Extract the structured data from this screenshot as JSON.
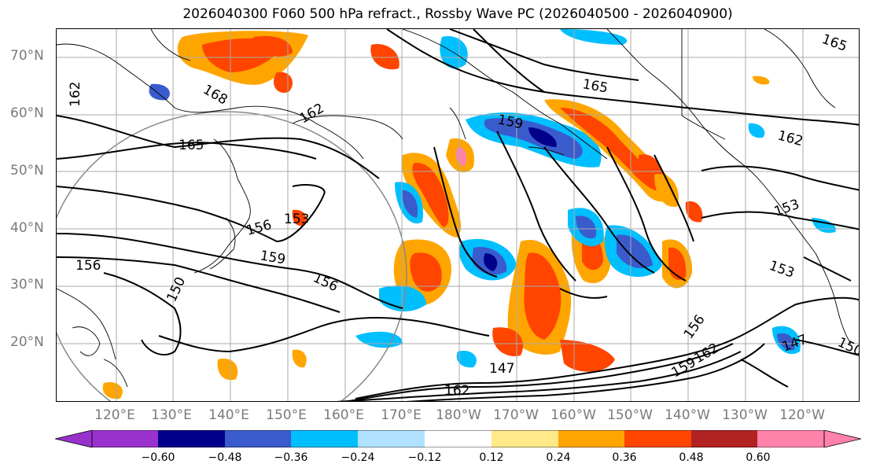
{
  "title": "2026040300 F060 500 hPa refract., Rossby Wave PC (2026040500 - 2026040900)",
  "lat_labels": [
    "70°N",
    "60°N",
    "50°N",
    "40°N",
    "30°N",
    "20°N"
  ],
  "lon_labels": [
    "120°E",
    "130°E",
    "140°E",
    "150°E",
    "160°E",
    "170°E",
    "180°W",
    "170°W",
    "160°W",
    "150°W",
    "140°W",
    "130°W",
    "120°W"
  ],
  "contour_labels": [
    "168",
    "165",
    "165",
    "162",
    "162",
    "162",
    "159",
    "159",
    "156",
    "156",
    "156",
    "153",
    "153",
    "153",
    "150",
    "150",
    "147",
    "147",
    "162",
    "159",
    "162",
    "156",
    "165"
  ],
  "colorbar": {
    "ticks": [
      "−0.60",
      "−0.48",
      "−0.36",
      "−0.24",
      "−0.12",
      "0.12",
      "0.24",
      "0.36",
      "0.48",
      "0.60"
    ],
    "colors": [
      "#9932cc",
      "#00008b",
      "#3a5bcc",
      "#00bfff",
      "#b0e2ff",
      "#ffffff",
      "#ffe98a",
      "#ffa500",
      "#ff4500",
      "#b22222",
      "#ff82ab"
    ]
  },
  "chart_data": {
    "type": "heatmap",
    "title": "2026040300 F060 500 hPa refract., Rossby Wave PC (2026040500 - 2026040900)",
    "projection": "cylindrical",
    "lon_range": [
      "112°E",
      "115°W"
    ],
    "lat_range": [
      "10°N",
      "75°N"
    ],
    "grid": true,
    "shading_levels": [
      -0.6,
      -0.48,
      -0.36,
      -0.24,
      -0.12,
      0.12,
      0.24,
      0.36,
      0.48,
      0.6
    ],
    "contour_values": [
      147,
      150,
      153,
      156,
      159,
      162,
      165,
      168
    ],
    "colorbar_extend": "both"
  }
}
